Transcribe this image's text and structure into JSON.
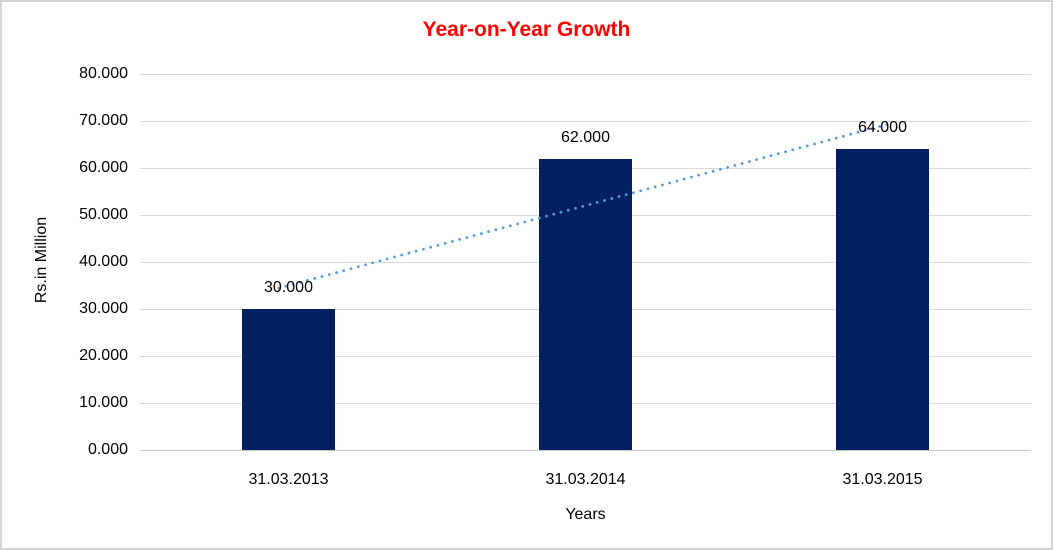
{
  "window": {
    "background_color": "#FFFFFF",
    "frame_border_color": "#D3D3D3"
  },
  "chart_data": {
    "type": "bar",
    "title": "Year-on-Year Growth",
    "title_color": "#FF0000",
    "xlabel": "Years",
    "ylabel": "Rs.in Million",
    "categories": [
      "31.03.2013",
      "31.03.2014",
      "31.03.2015"
    ],
    "values": [
      30000,
      62000,
      64000
    ],
    "value_labels": [
      "30.000",
      "62.000",
      "64.000"
    ],
    "ylim": [
      0,
      80000
    ],
    "ytick_step": 10000,
    "ytick_labels": [
      "0.000",
      "10.000",
      "20.000",
      "30.000",
      "40.000",
      "50.000",
      "60.000",
      "70.000",
      "80.000"
    ],
    "bar_color": "#002060",
    "gridline_color": "#D9D9D9",
    "axis_line_color": "#C6C6C6",
    "grid": true,
    "legend": "none",
    "trendline": {
      "type": "linear",
      "style": "dotted",
      "color": "#5B9BD5"
    }
  }
}
